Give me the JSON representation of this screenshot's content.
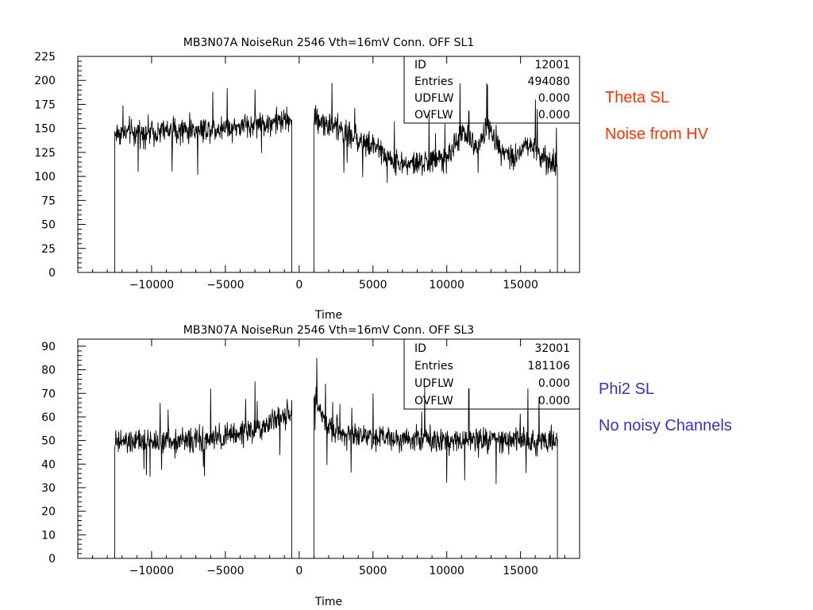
{
  "chart_data": [
    {
      "type": "line",
      "title": "MB3N07A NoiseRun 2546 Vth=16mV Conn. OFF SL1",
      "xlabel": "Time",
      "ylabel": "",
      "xlim": [
        -15000,
        19000
      ],
      "ylim": [
        0,
        225
      ],
      "x_ticks": [
        -10000,
        -5000,
        0,
        5000,
        10000,
        15000
      ],
      "x_tick_labels": [
        "−10000",
        "−5000",
        "0",
        "5000",
        "10000",
        "15000"
      ],
      "y_ticks": [
        0,
        25,
        50,
        75,
        100,
        125,
        150,
        175,
        200,
        225
      ],
      "y_tick_labels": [
        "0",
        "25",
        "50",
        "75",
        "100",
        "125",
        "150",
        "175",
        "200",
        "225"
      ],
      "grid": false,
      "stats_box": {
        "position": "top-right",
        "rows": [
          {
            "label": "ID",
            "value": "12001"
          },
          {
            "label": "Entries",
            "value": "494080"
          },
          {
            "label": "UDFLW",
            "value": "0.000"
          },
          {
            "label": "OVFLW",
            "value": "0.000"
          }
        ]
      },
      "series": [
        {
          "x_range": [
            -12500,
            17500
          ],
          "gap": [
            -500,
            1000
          ],
          "noise_amplitude": 20,
          "baseline_points": [
            [
              -12500,
              145
            ],
            [
              -8000,
              148
            ],
            [
              -4000,
              152
            ],
            [
              -1000,
              158
            ],
            [
              -500,
              160
            ],
            [
              1000,
              160
            ],
            [
              3000,
              148
            ],
            [
              5000,
              130
            ],
            [
              7000,
              112
            ],
            [
              9000,
              115
            ],
            [
              10000,
              118
            ],
            [
              11000,
              145
            ],
            [
              12000,
              130
            ],
            [
              12800,
              150
            ],
            [
              13500,
              132
            ],
            [
              14500,
              120
            ],
            [
              15500,
              135
            ],
            [
              16500,
              118
            ],
            [
              17500,
              110
            ]
          ],
          "spikes": [
            [
              10900,
              197
            ],
            [
              12700,
              197
            ],
            [
              16000,
              180
            ],
            [
              8800,
              165
            ],
            [
              11500,
              168
            ]
          ]
        }
      ]
    },
    {
      "type": "line",
      "title": "MB3N07A NoiseRun 2546 Vth=16mV Conn. OFF SL3",
      "xlabel": "Time",
      "ylabel": "",
      "xlim": [
        -15000,
        19000
      ],
      "ylim": [
        0,
        93
      ],
      "x_ticks": [
        -10000,
        -5000,
        0,
        5000,
        10000,
        15000
      ],
      "x_tick_labels": [
        "−10000",
        "−5000",
        "0",
        "5000",
        "10000",
        "15000"
      ],
      "y_ticks": [
        0,
        10,
        20,
        30,
        40,
        50,
        60,
        70,
        80,
        90
      ],
      "y_tick_labels": [
        "0",
        "10",
        "20",
        "30",
        "40",
        "50",
        "60",
        "70",
        "80",
        "90"
      ],
      "grid": false,
      "stats_box": {
        "position": "top-right",
        "rows": [
          {
            "label": "ID",
            "value": "32001"
          },
          {
            "label": "Entries",
            "value": "181106"
          },
          {
            "label": "UDFLW",
            "value": "0.000"
          },
          {
            "label": "OVFLW",
            "value": "0.000"
          }
        ]
      },
      "series": [
        {
          "x_range": [
            -12500,
            17500
          ],
          "gap": [
            -500,
            1000
          ],
          "noise_amplitude": 8,
          "baseline_points": [
            [
              -12500,
              49
            ],
            [
              -8000,
              50
            ],
            [
              -6000,
              50
            ],
            [
              -4000,
              53
            ],
            [
              -2000,
              57
            ],
            [
              -500,
              62
            ],
            [
              1000,
              68
            ],
            [
              2000,
              55
            ],
            [
              4000,
              52
            ],
            [
              8000,
              51
            ],
            [
              12000,
              50
            ],
            [
              17500,
              50
            ]
          ],
          "spikes": [
            [
              1200,
              85
            ],
            [
              -3000,
              75
            ],
            [
              8500,
              73
            ],
            [
              11500,
              72
            ],
            [
              15500,
              72
            ],
            [
              -6000,
              72
            ],
            [
              5000,
              70
            ]
          ]
        }
      ]
    }
  ],
  "annotations": {
    "top_line1": "Theta SL",
    "top_line2": "Noise from HV",
    "bottom_line1": "Phi2 SL",
    "bottom_line2": "No noisy Channels"
  },
  "colors": {
    "trace": "#000000",
    "annotation_top": "#ff3300",
    "annotation_bottom": "#3333cc"
  }
}
